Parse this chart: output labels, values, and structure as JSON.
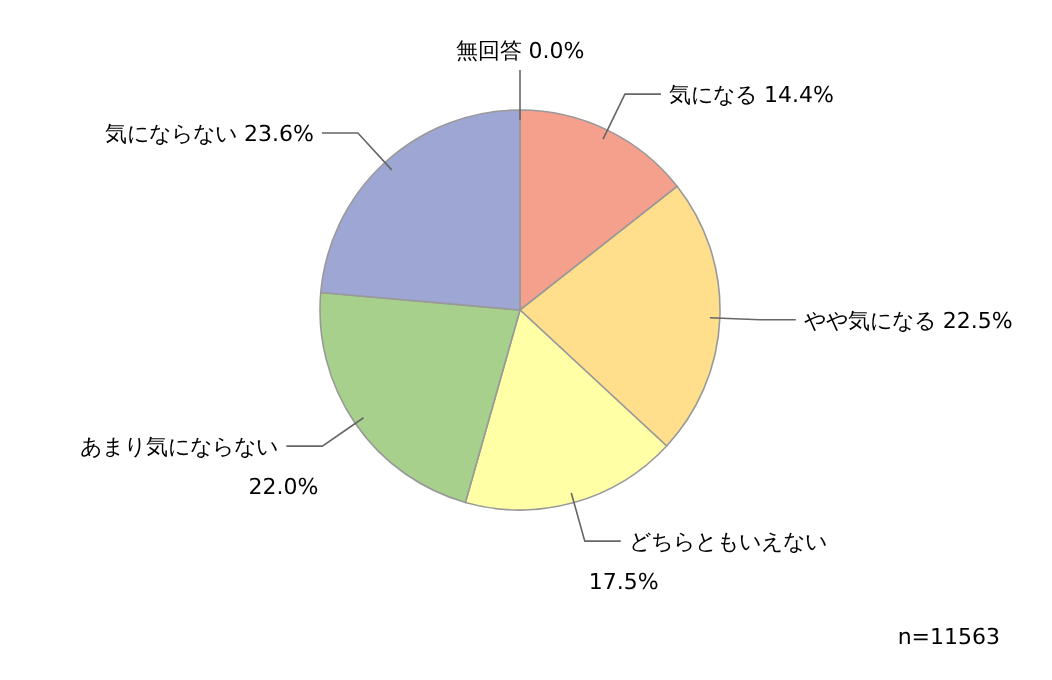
{
  "chart_data": {
    "type": "pie",
    "categories": [
      "気になる",
      "やや気になる",
      "どちらともいえない",
      "あまり気にならない",
      "気にならない",
      "無回答"
    ],
    "values": [
      14.4,
      22.5,
      17.5,
      22.0,
      23.6,
      0.0
    ],
    "value_labels": [
      "14.4%",
      "22.5%",
      "17.5%",
      "22.0%",
      "23.6%",
      "0.0%"
    ],
    "colors": [
      "#f4a08c",
      "#ffdf8c",
      "#ffffa6",
      "#a6d08c",
      "#9ea6d4",
      "#c0c0c0"
    ],
    "annotations": [
      "n=11563"
    ]
  }
}
